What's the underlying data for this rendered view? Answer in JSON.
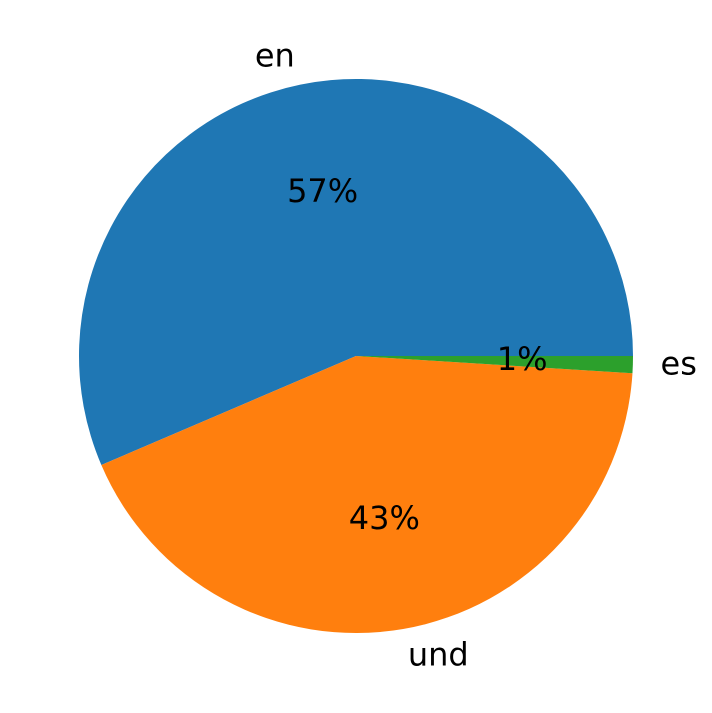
{
  "chart_data": {
    "type": "pie",
    "categories": [
      "en",
      "und",
      "es"
    ],
    "values": [
      57,
      43,
      1
    ],
    "value_labels": [
      "57%",
      "43%",
      "1%"
    ],
    "colors": [
      "#1f77b4",
      "#ff7f0e",
      "#2ca02c"
    ],
    "start_angle": 0
  }
}
